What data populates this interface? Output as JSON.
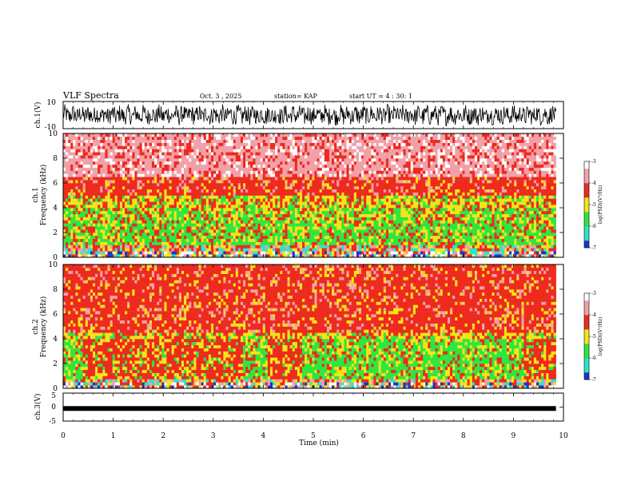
{
  "header": {
    "title": "VLF Spectra",
    "date": "Oct. 3  , 2025",
    "station": "station= KAP",
    "start": "start  UT  =   4 : 30: 1"
  },
  "palette": {
    "red": "#ee2a1e",
    "pink": "#f2a0a8",
    "white": "#ffffff",
    "yellow": "#f4e418",
    "green": "#2fe640",
    "cyan": "#29e6c8",
    "blue": "#2030d0",
    "trace": "#000000"
  },
  "chart_data": [
    {
      "type": "line",
      "name": "waveform ch.1",
      "ylabel": "ch.1(V)",
      "ylim": [
        -10,
        10
      ],
      "yticks": [
        "10",
        "-10"
      ],
      "xlim": [
        0,
        10
      ]
    },
    {
      "type": "heatmap",
      "name": "spectrogram ch.1",
      "ylabel": "ch.1\nFrequency (kHz)",
      "ylabel_lines": [
        "ch.1",
        "Frequency  (kHz)"
      ],
      "ylim": [
        0,
        10
      ],
      "yticks": [
        "0",
        "2",
        "4",
        "6",
        "8",
        "10"
      ],
      "xlim": [
        0,
        10
      ],
      "data_end_min": 9.85,
      "colorbar": {
        "label": "log(PSD)(V²/Hz)",
        "range": [
          -7,
          -3
        ],
        "ticks": [
          "-3",
          "-4",
          "-5",
          "-6",
          "-7"
        ]
      },
      "bands_khz": [
        {
          "from": 0,
          "to": 0.8,
          "level": "mixed"
        },
        {
          "from": 0.8,
          "to": 2.6,
          "level": "green"
        },
        {
          "from": 2.6,
          "to": 3.9,
          "level": "green-yellow"
        },
        {
          "from": 3.9,
          "to": 4.9,
          "level": "yellow"
        },
        {
          "from": 4.9,
          "to": 6.5,
          "level": "red"
        },
        {
          "from": 6.5,
          "to": 10,
          "level": "pink"
        }
      ]
    },
    {
      "type": "heatmap",
      "name": "spectrogram ch.2",
      "ylabel_lines": [
        "ch.2",
        "Frequency  (kHz)"
      ],
      "ylim": [
        0,
        10
      ],
      "yticks": [
        "0",
        "2",
        "4",
        "6",
        "8",
        "10"
      ],
      "xlim": [
        0,
        10
      ],
      "data_end_min": 9.85,
      "colorbar": {
        "label": "log(PSD)(V²/Hz)",
        "range": [
          -7,
          -3
        ],
        "ticks": [
          "-3",
          "-4",
          "-5",
          "-6",
          "-7"
        ]
      },
      "bands_khz": [
        {
          "from": 0,
          "to": 0.6,
          "level": "mixed"
        },
        {
          "from": 0.6,
          "to": 3.8,
          "level": "green-where-active"
        },
        {
          "from": 3.8,
          "to": 4.5,
          "level": "yellow"
        },
        {
          "from": 4.5,
          "to": 10,
          "level": "red"
        }
      ],
      "green_activity_minutes": [
        [
          0.0,
          0.4
        ],
        [
          3.6,
          4.1
        ],
        [
          4.8,
          9.2
        ]
      ]
    },
    {
      "type": "line",
      "name": "waveform ch.3",
      "ylabel": "ch.3(V)",
      "ylim": [
        -5,
        5
      ],
      "yticks": [
        "5",
        "0",
        "-5"
      ],
      "xlim": [
        0,
        10
      ],
      "level_v": -0.5
    }
  ],
  "xaxis": {
    "label": "Time  (min)",
    "ticks": [
      "0",
      "1",
      "2",
      "3",
      "4",
      "5",
      "6",
      "7",
      "8",
      "9",
      "10"
    ]
  }
}
